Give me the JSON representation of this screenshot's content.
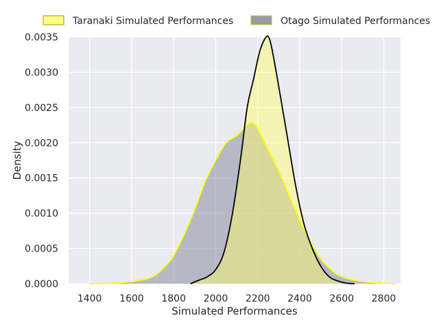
{
  "chart_data": {
    "type": "area",
    "subtype": "kde",
    "title": "",
    "xlabel": "Simulated Performances",
    "ylabel": "Density",
    "xlim": [
      1300,
      2880
    ],
    "ylim": [
      0,
      0.0035
    ],
    "xticks": [
      1400,
      1600,
      1800,
      2000,
      2200,
      2400,
      2600,
      2800
    ],
    "yticks": [
      0.0,
      0.0005,
      0.001,
      0.0015,
      0.002,
      0.0025,
      0.003,
      0.0035
    ],
    "ytick_labels": [
      "0.0000",
      "0.0005",
      "0.0010",
      "0.0015",
      "0.0020",
      "0.0025",
      "0.0030",
      "0.0035"
    ],
    "grid": true,
    "legend_position": "top, above plot",
    "colors": {
      "background": "#eaeaf2",
      "grid": "#ffffff",
      "taranaki_fill": "#ffff66",
      "otago_fill": "#8a8fa0",
      "otago_line": "#ffff00",
      "taranaki_line": "#000000"
    },
    "series": [
      {
        "name": "Taranaki Simulated Performances",
        "fill": "#ffff66",
        "line": "#000000",
        "x": [
          1880,
          1920,
          1960,
          2000,
          2040,
          2080,
          2120,
          2150,
          2180,
          2210,
          2240,
          2255,
          2270,
          2300,
          2340,
          2380,
          2420,
          2460,
          2500,
          2540,
          2580,
          2620,
          2660
        ],
        "y": [
          0.0,
          5e-05,
          0.0001,
          0.0002,
          0.00045,
          0.001,
          0.0018,
          0.0025,
          0.0029,
          0.0033,
          0.0035,
          0.00348,
          0.0033,
          0.0028,
          0.0021,
          0.0014,
          0.00085,
          0.0005,
          0.00025,
          0.0001,
          4e-05,
          1e-05,
          0.0
        ]
      },
      {
        "name": "Otago Simulated Performances",
        "fill": "#8a8fa0",
        "line": "#ffff00",
        "x": [
          1400,
          1500,
          1600,
          1700,
          1760,
          1800,
          1850,
          1900,
          1950,
          2000,
          2050,
          2100,
          2150,
          2175,
          2200,
          2250,
          2300,
          2350,
          2400,
          2450,
          2500,
          2550,
          2600,
          2700,
          2800,
          2860
        ],
        "y": [
          0.0,
          1e-05,
          3e-05,
          0.0001,
          0.00025,
          0.0004,
          0.0007,
          0.00105,
          0.00145,
          0.00175,
          0.002,
          0.0021,
          0.00225,
          0.00228,
          0.0022,
          0.0019,
          0.0016,
          0.00125,
          0.0009,
          0.0006,
          0.00035,
          0.0002,
          0.0001,
          3e-05,
          1e-05,
          0.0
        ]
      }
    ]
  }
}
